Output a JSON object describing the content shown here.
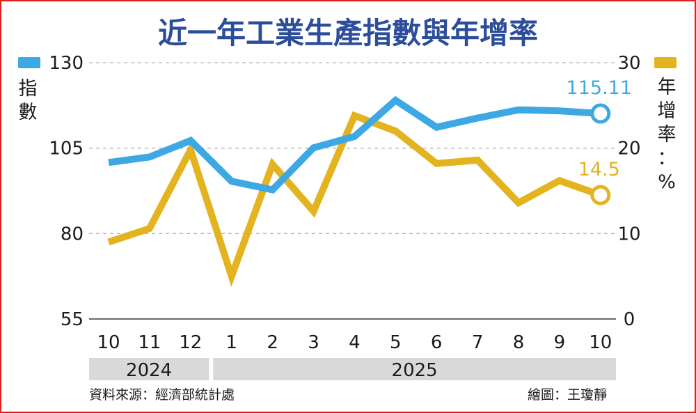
{
  "title": "近一年工業生產指數與年增率",
  "left_axis_label": "指數",
  "right_axis_label": "年增率：%",
  "source": "資料來源：經濟部統計處",
  "credit": "繪圖：王瓊靜",
  "colors": {
    "index": "#3ea8e4",
    "growth": "#e3b41f",
    "title": "#2b4d9a",
    "grid": "#b5b5b5",
    "band": "#d9d9d9"
  },
  "chart_data": {
    "type": "line",
    "title": "近一年工業生產指數與年增率",
    "x": [
      "10",
      "11",
      "12",
      "1",
      "2",
      "3",
      "4",
      "5",
      "6",
      "7",
      "8",
      "9",
      "10"
    ],
    "year_groups": [
      {
        "label": "2024",
        "months": [
          "10",
          "11",
          "12"
        ]
      },
      {
        "label": "2025",
        "months": [
          "1",
          "2",
          "3",
          "4",
          "5",
          "6",
          "7",
          "8",
          "9",
          "10"
        ]
      }
    ],
    "ylabel_left": "指數",
    "ylabel_right": "年增率：%",
    "ylim_left": [
      55,
      130
    ],
    "yticks_left": [
      55,
      80,
      105,
      130
    ],
    "ylim_right": [
      0,
      30
    ],
    "yticks_right": [
      0,
      10,
      20,
      30
    ],
    "grid": true,
    "series": [
      {
        "name": "指數",
        "axis": "left",
        "color": "#3ea8e4",
        "values": [
          100.8,
          102.4,
          107.2,
          95.3,
          92.8,
          105.1,
          108.4,
          119.0,
          111.1,
          113.8,
          116.2,
          115.9,
          115.11
        ],
        "end_label": "115.11"
      },
      {
        "name": "年增率：%",
        "axis": "right",
        "color": "#e3b41f",
        "values": [
          9.0,
          10.6,
          19.8,
          5.0,
          18.1,
          12.6,
          23.8,
          22.0,
          18.2,
          18.6,
          13.6,
          16.2,
          14.5
        ],
        "end_label": "14.5"
      }
    ]
  }
}
